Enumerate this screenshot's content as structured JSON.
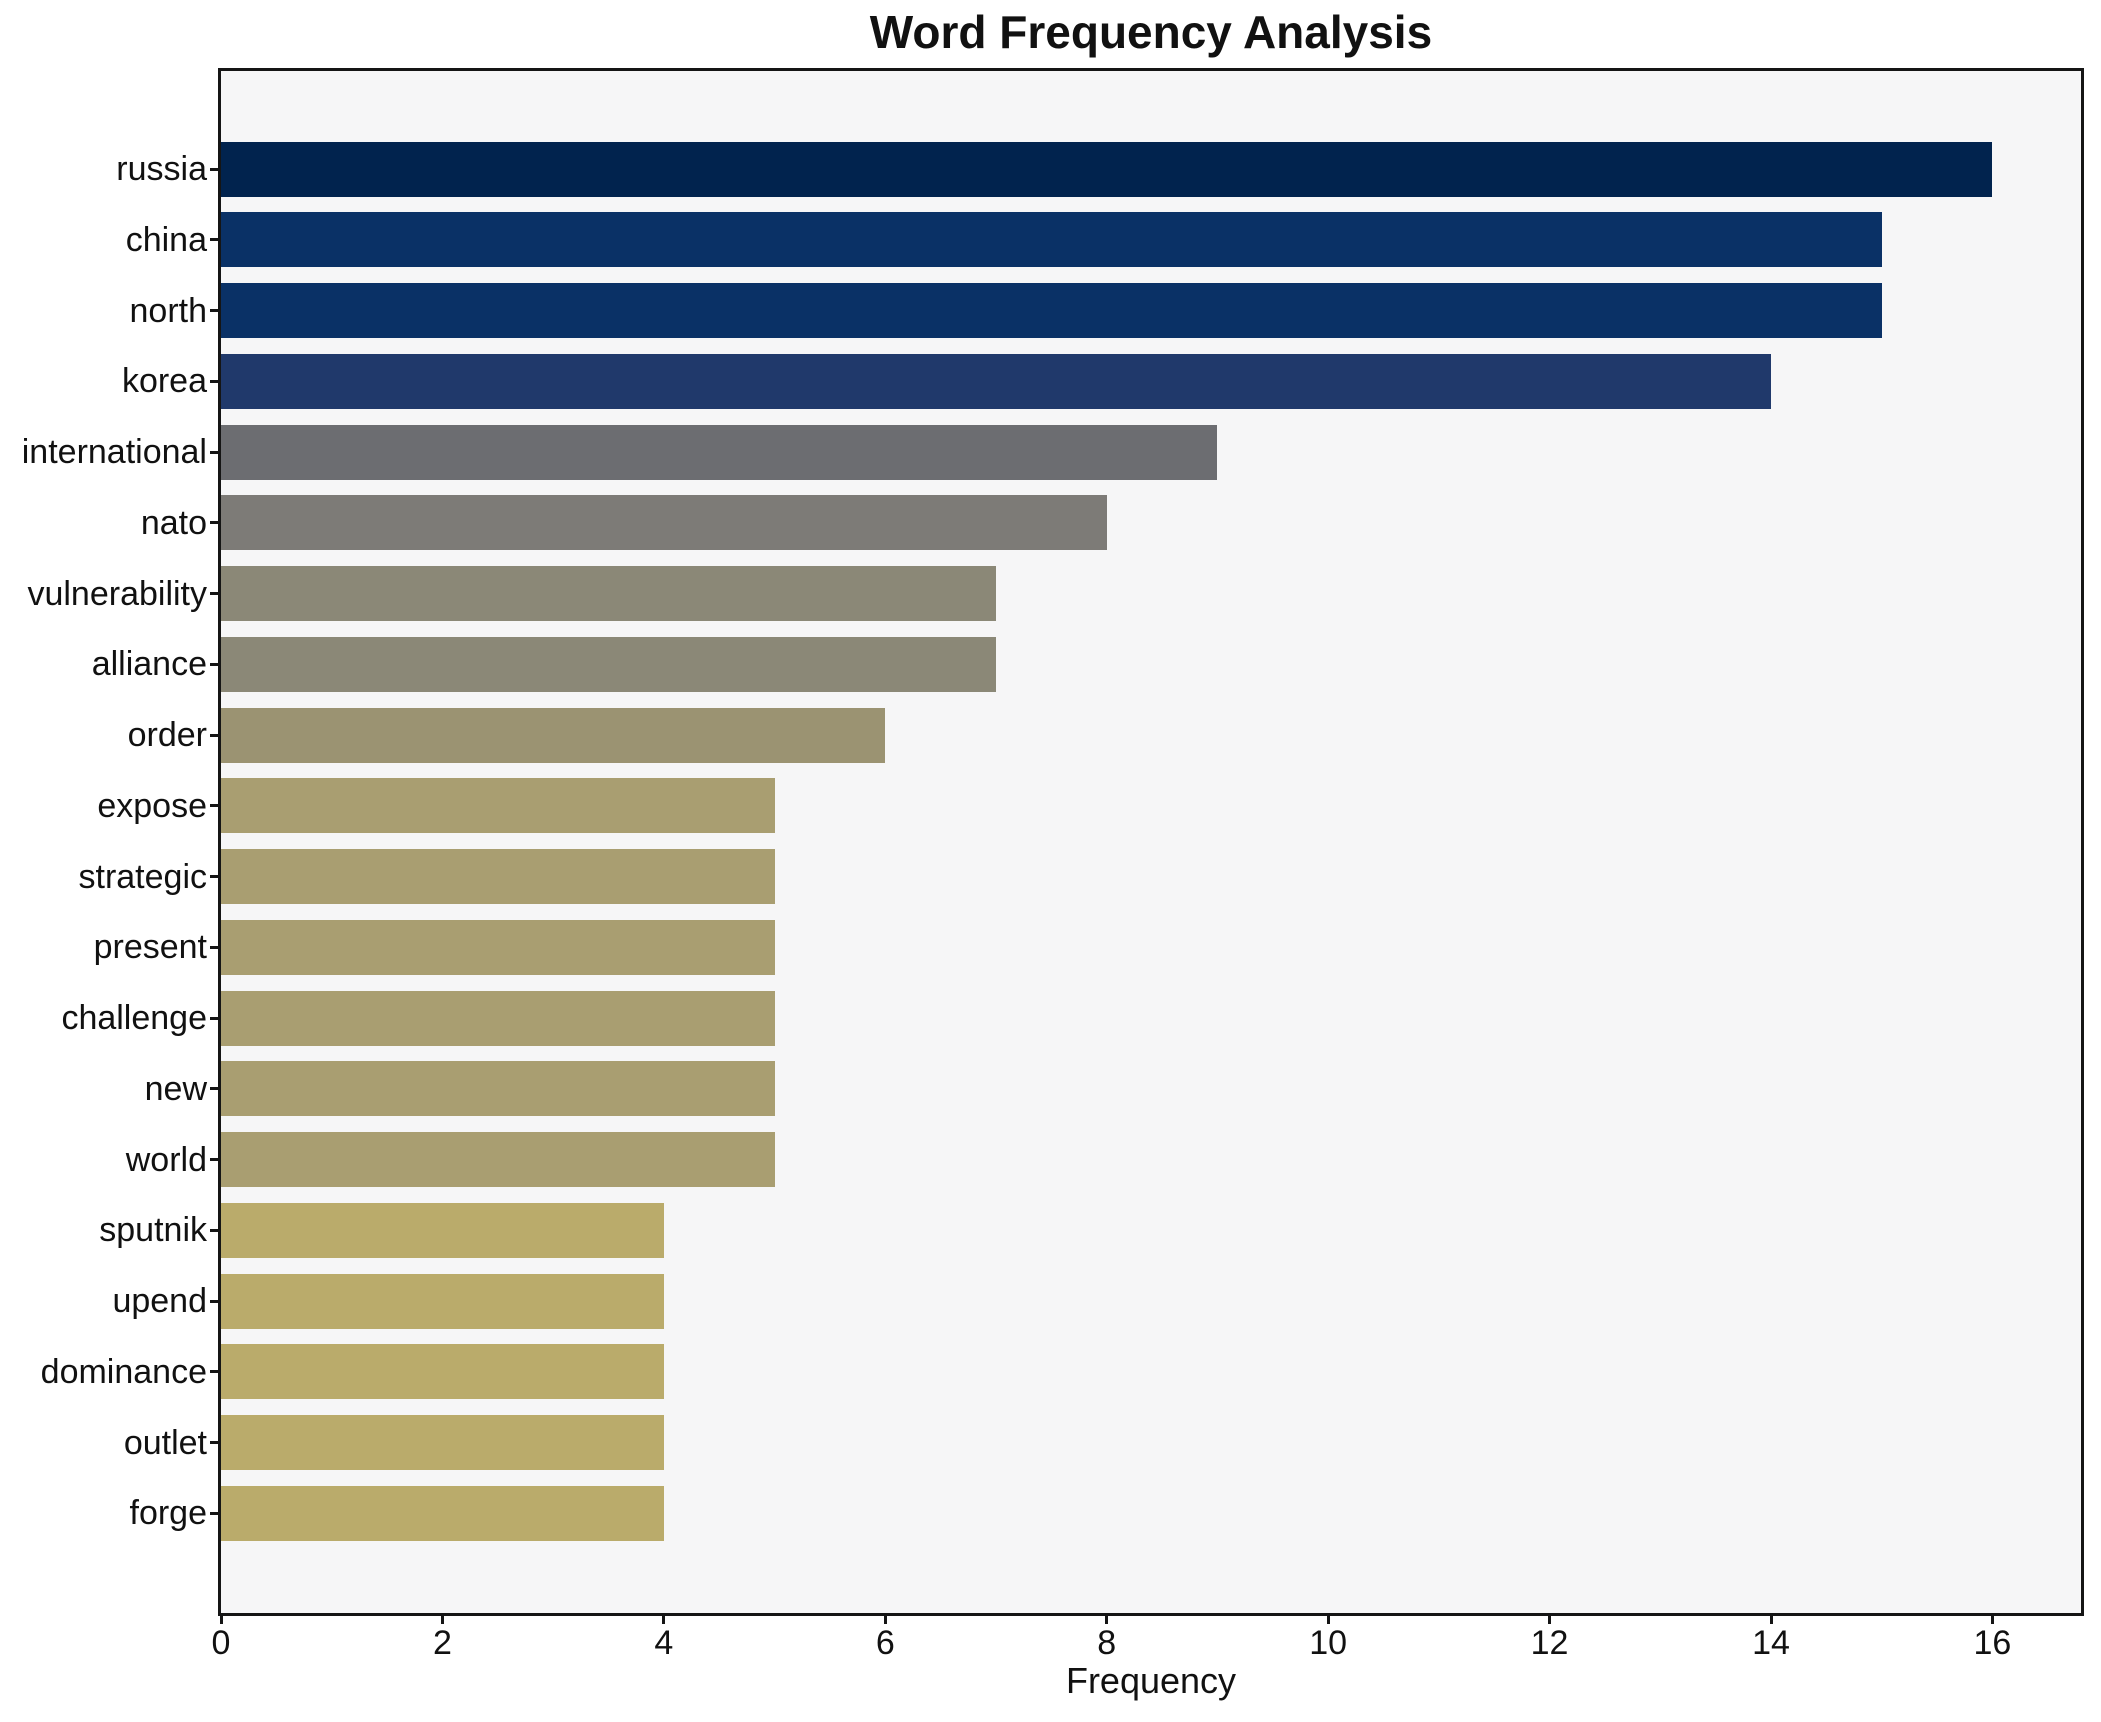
{
  "chart_data": {
    "type": "bar",
    "orientation": "horizontal",
    "title": "Word Frequency Analysis",
    "xlabel": "Frequency",
    "ylabel": "",
    "grid": false,
    "legend": null,
    "xlim": [
      0,
      16.8
    ],
    "xticks": [
      0,
      2,
      4,
      6,
      8,
      10,
      12,
      14,
      16
    ],
    "categories": [
      "russia",
      "china",
      "north",
      "korea",
      "international",
      "nato",
      "vulnerability",
      "alliance",
      "order",
      "expose",
      "strategic",
      "present",
      "challenge",
      "new",
      "world",
      "sputnik",
      "upend",
      "dominance",
      "outlet",
      "forge"
    ],
    "values": [
      16,
      15,
      15,
      14,
      9,
      8,
      7,
      7,
      6,
      5,
      5,
      5,
      5,
      5,
      5,
      4,
      4,
      4,
      4,
      4
    ],
    "bar_colors": [
      "#01234e",
      "#0a3166",
      "#0a3166",
      "#20396b",
      "#6c6d71",
      "#7d7b77",
      "#8b8877",
      "#8b8877",
      "#9b9372",
      "#a99e71",
      "#a99e71",
      "#a99e71",
      "#a99e71",
      "#a99e71",
      "#a99e71",
      "#baab6b",
      "#baab6b",
      "#baab6b",
      "#baab6b",
      "#baab6b"
    ],
    "colors": {
      "figure_background": "#ffffff",
      "plot_background": "#f6f6f7",
      "spine": "#151515",
      "text": "#111111"
    }
  }
}
